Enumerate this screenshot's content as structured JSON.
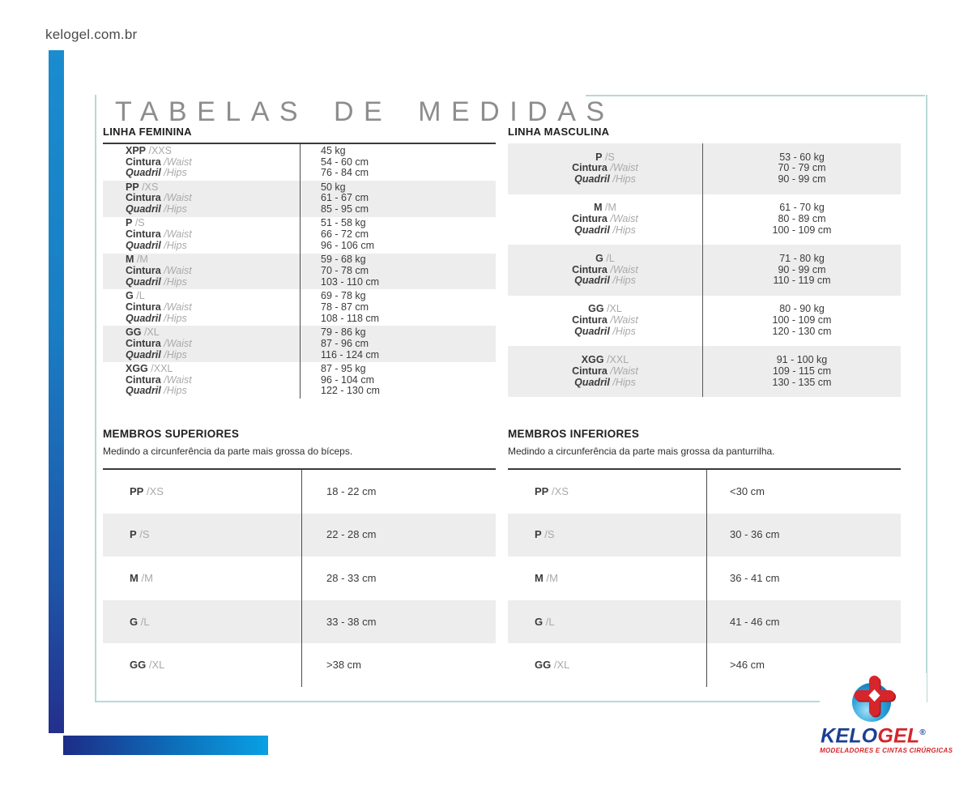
{
  "page": {
    "site": "kelogel.com.br",
    "title": "TABELAS DE MEDIDAS"
  },
  "row_labels": {
    "cintura": "Cintura",
    "waist": "/Waist",
    "quadril": "Quadril",
    "hips": "/Hips"
  },
  "linha_feminina": {
    "title": "LINHA FEMININA",
    "rows": [
      {
        "size": "XPP",
        "size_alt": "/XXS",
        "weight": "45 kg",
        "waist": "54 - 60 cm",
        "hips": "76 - 84 cm"
      },
      {
        "size": "PP",
        "size_alt": "/XS",
        "weight": "50 kg",
        "waist": "61 - 67 cm",
        "hips": "85 - 95 cm"
      },
      {
        "size": "P",
        "size_alt": "/S",
        "weight": "51 - 58 kg",
        "waist": "66 - 72 cm",
        "hips": "96 - 106 cm"
      },
      {
        "size": "M",
        "size_alt": "/M",
        "weight": "59 - 68 kg",
        "waist": "70 - 78 cm",
        "hips": "103 - 110 cm"
      },
      {
        "size": "G",
        "size_alt": "/L",
        "weight": "69 - 78 kg",
        "waist": "78 - 87 cm",
        "hips": "108 - 118 cm"
      },
      {
        "size": "GG",
        "size_alt": "/XL",
        "weight": "79 - 86 kg",
        "waist": "87 - 96 cm",
        "hips": "116 - 124 cm"
      },
      {
        "size": "XGG",
        "size_alt": "/XXL",
        "weight": "87 - 95 kg",
        "waist": "96 - 104 cm",
        "hips": "122 - 130 cm"
      }
    ]
  },
  "linha_masculina": {
    "title": "LINHA MASCULINA",
    "rows": [
      {
        "size": "P",
        "size_alt": "/S",
        "weight": "53 - 60 kg",
        "waist": "70 - 79 cm",
        "hips": "90 - 99 cm"
      },
      {
        "size": "M",
        "size_alt": "/M",
        "weight": "61 - 70 kg",
        "waist": "80 - 89 cm",
        "hips": "100 - 109 cm"
      },
      {
        "size": "G",
        "size_alt": "/L",
        "weight": "71 - 80 kg",
        "waist": "90 - 99 cm",
        "hips": "110 - 119 cm"
      },
      {
        "size": "GG",
        "size_alt": "/XL",
        "weight": "80 - 90 kg",
        "waist": "100 - 109 cm",
        "hips": "120 - 130 cm"
      },
      {
        "size": "XGG",
        "size_alt": "/XXL",
        "weight": "91 - 100 kg",
        "waist": "109 - 115 cm",
        "hips": "130 - 135 cm"
      }
    ]
  },
  "membros_superiores": {
    "title": "MEMBROS SUPERIORES",
    "subtitle": "Medindo a circunferência da parte mais grossa do bíceps.",
    "rows": [
      {
        "size": "PP",
        "size_alt": "/XS",
        "value": "18 - 22 cm"
      },
      {
        "size": "P",
        "size_alt": "/S",
        "value": "22 - 28 cm"
      },
      {
        "size": "M",
        "size_alt": "/M",
        "value": "28 - 33 cm"
      },
      {
        "size": "G",
        "size_alt": "/L",
        "value": "33 - 38 cm"
      },
      {
        "size": "GG",
        "size_alt": "/XL",
        "value": ">38 cm"
      }
    ]
  },
  "membros_inferiores": {
    "title": "MEMBROS INFERIORES",
    "subtitle": "Medindo a circunferência da parte mais grossa da panturrilha.",
    "rows": [
      {
        "size": "PP",
        "size_alt": "/XS",
        "value": "<30 cm"
      },
      {
        "size": "P",
        "size_alt": "/S",
        "value": "30 - 36 cm"
      },
      {
        "size": "M",
        "size_alt": "/M",
        "value": "36 - 41 cm"
      },
      {
        "size": "G",
        "size_alt": "/L",
        "value": "41 - 46 cm"
      },
      {
        "size": "GG",
        "size_alt": "/XL",
        "value": ">46 cm"
      }
    ]
  },
  "logo": {
    "brand_blue": "KELO",
    "brand_red": "GEL",
    "registered": "®",
    "tagline": "MODELADORES E CINTAS CIRÚRGICAS"
  },
  "colors": {
    "accent_blue_light": "#0aa0e4",
    "accent_blue_dark": "#232f8c",
    "frame_teal": "#b7d8d8",
    "row_gray": "#ededed",
    "line_dark": "#3a3a3a",
    "text_dark": "#3b3b3b",
    "text_muted": "#a9a9a9",
    "brand_navy": "#1c3f94",
    "brand_red": "#d6252b"
  }
}
